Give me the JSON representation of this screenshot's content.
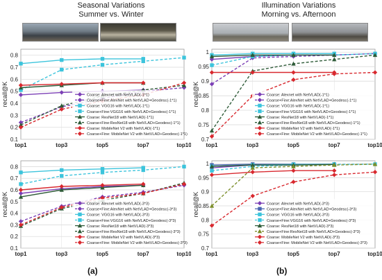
{
  "sections": {
    "left_title_line1": "Seasonal Variations",
    "left_title_line2": "Summer vs. Winter",
    "right_title_line1": "Illumination Variations",
    "right_title_line2": "Morning vs. Afternoon",
    "label_a": "(a)",
    "label_b": "(b)"
  },
  "colors": {
    "purple": "#7b3fb5",
    "blue": "#4a66b0",
    "cyan": "#3cc4dc",
    "darkgreen": "#2e5b38",
    "red": "#d8282e",
    "olive": "#7c8e2a"
  },
  "chart_data": [
    {
      "type": "line",
      "ylabel": "recall@K",
      "categories": [
        "top1",
        "top3",
        "top5",
        "top7",
        "top10"
      ],
      "yticks": [
        "0.1",
        "0.2",
        "0.3",
        "0.4",
        "0.5",
        "0.6",
        "0.7",
        "0.8"
      ],
      "ylim": [
        0.1,
        0.85
      ],
      "grid": true,
      "legend_position": "bottom-right",
      "series": [
        {
          "name": "Coarse:  Alexnet with NetVLAD(-1*1)",
          "color": "#7b3fb5",
          "style": "solid",
          "marker": "diamond",
          "values": [
            0.47,
            0.49,
            0.5,
            0.51,
            null
          ]
        },
        {
          "name": "Coarse+Fine:AlexNet with NetVLAD+Geodesc(-1*1)",
          "color": "#7b3fb5",
          "style": "dashed",
          "marker": "diamond",
          "values": [
            0.24,
            0.37,
            0.44,
            0.5,
            0.53
          ]
        },
        {
          "name": "Coarse:  VGG16 with NetVLAD(-1*1)",
          "color": "#3cc4dc",
          "style": "solid",
          "marker": "square",
          "values": [
            0.73,
            0.76,
            0.77,
            0.77,
            null
          ]
        },
        {
          "name": "Coarse+Fine:VGG16 with NetVLAD+Geodesc(-1*1)",
          "color": "#3cc4dc",
          "style": "dashed",
          "marker": "square",
          "values": [
            0.51,
            0.68,
            0.72,
            0.75,
            0.78
          ]
        },
        {
          "name": "Coarse:  ResNet18 with NetVLAD(-1*1)",
          "color": "#2e5b38",
          "style": "solid",
          "marker": "triangle",
          "values": [
            0.53,
            0.55,
            0.57,
            0.57,
            null
          ]
        },
        {
          "name": "Coarse+Fine:ResNet18 with NetVLAD+Geodesc(-1*1)",
          "color": "#2e5b38",
          "style": "dashed",
          "marker": "triangle",
          "values": [
            0.22,
            0.38,
            0.46,
            0.51,
            0.55
          ]
        },
        {
          "name": "Coarse:  MobileNet V2 with NetVLAD(-1*1)",
          "color": "#d8282e",
          "style": "solid",
          "marker": "diamond",
          "values": [
            0.55,
            0.56,
            0.57,
            0.57,
            null
          ]
        },
        {
          "name": "Coarse+Fine: MobileNet V2 with NetVLAD+Geodesc(-1*1)",
          "color": "#d8282e",
          "style": "dashed",
          "marker": "diamond",
          "values": [
            0.2,
            0.35,
            0.42,
            0.47,
            0.57
          ]
        }
      ]
    },
    {
      "type": "line",
      "ylabel": "recall@K",
      "categories": [
        "top1",
        "top3",
        "top5",
        "top7",
        "top10"
      ],
      "yticks": [
        "0.7",
        "0.75",
        "0.8",
        "0.85",
        "0.9",
        "0.95",
        "1"
      ],
      "ylim": [
        0.7,
        1.01
      ],
      "grid": true,
      "legend_position": "bottom-right",
      "series": [
        {
          "name": "Coarse:  Alexnet with NetVLAD(-1*1)",
          "color": "#7b3fb5",
          "style": "solid",
          "marker": "diamond",
          "values": [
            0.975,
            0.985,
            0.99,
            0.99,
            null
          ]
        },
        {
          "name": "Coarse+Fine:AlexNet with NetVLAD+Geodesc(-1*1)",
          "color": "#7b3fb5",
          "style": "dashed",
          "marker": "diamond",
          "values": [
            0.89,
            0.98,
            0.985,
            0.99,
            0.995
          ]
        },
        {
          "name": "Coarse:  VGG16 with NetVLAD(-1*1)",
          "color": "#3cc4dc",
          "style": "solid",
          "marker": "square",
          "values": [
            0.99,
            0.995,
            0.995,
            0.995,
            null
          ]
        },
        {
          "name": "Coarse+Fine:VGG16 with NetVLAD+Geodesc(-1*1)",
          "color": "#3cc4dc",
          "style": "dashed",
          "marker": "square",
          "values": [
            0.955,
            0.985,
            0.99,
            0.99,
            0.995
          ]
        },
        {
          "name": "Coarse:  ResNet18 with NetVLAD(-1*1)",
          "color": "#2e5b38",
          "style": "solid",
          "marker": "triangle",
          "values": [
            0.985,
            0.99,
            0.99,
            0.99,
            null
          ]
        },
        {
          "name": "Coarse+Fine:ResNet18 with NetVLAD+Geodesc(-1*1)",
          "color": "#2e5b38",
          "style": "dashed",
          "marker": "triangle",
          "values": [
            0.73,
            0.935,
            0.96,
            0.975,
            0.99
          ]
        },
        {
          "name": "Coarse:  MobileNet V2 with NetVLAD(-1*1)",
          "color": "#d8282e",
          "style": "solid",
          "marker": "diamond",
          "values": [
            0.93,
            0.93,
            0.93,
            0.93,
            null
          ]
        },
        {
          "name": "Coarse+Fine: MobileNet V2 with NetVLAD+Geodesc(-1*1)",
          "color": "#d8282e",
          "style": "dashed",
          "marker": "diamond",
          "values": [
            0.71,
            0.85,
            0.905,
            0.925,
            0.93
          ]
        }
      ]
    },
    {
      "type": "line",
      "ylabel": "recall@K",
      "categories": [
        "top1",
        "top3",
        "top5",
        "top7",
        "top10"
      ],
      "yticks": [
        "0.1",
        "0.2",
        "0.3",
        "0.4",
        "0.5",
        "0.6",
        "0.7",
        "0.8"
      ],
      "ylim": [
        0.1,
        0.85
      ],
      "grid": true,
      "legend_position": "bottom-right",
      "series": [
        {
          "name": "Coarse:  Alexnet with NetVLAD(-3*3)",
          "color": "#7b3fb5",
          "style": "solid",
          "marker": "diamond",
          "values": [
            0.57,
            0.61,
            0.63,
            0.64,
            null
          ]
        },
        {
          "name": "Coarse+Fine:AlexNet with NetVLAD+Geodesc(-3*3)",
          "color": "#7b3fb5",
          "style": "dashed",
          "marker": "diamond",
          "values": [
            0.33,
            0.46,
            0.54,
            0.58,
            0.64
          ]
        },
        {
          "name": "Coarse:  VGG16 with NetVLAD(-3*3)",
          "color": "#3cc4dc",
          "style": "solid",
          "marker": "square",
          "values": [
            0.75,
            0.77,
            0.78,
            0.79,
            null
          ]
        },
        {
          "name": "Coarse+Fine:VGG16 with NetVLAD+Geodesc(-3*3)",
          "color": "#3cc4dc",
          "style": "dashed",
          "marker": "square",
          "values": [
            0.65,
            0.72,
            0.75,
            0.77,
            0.8
          ]
        },
        {
          "name": "Coarse:  ResNet18 with NetVLAD(-3*3)",
          "color": "#2e5b38",
          "style": "solid",
          "marker": "triangle",
          "values": [
            0.54,
            0.6,
            0.62,
            0.64,
            null
          ]
        },
        {
          "name": "Coarse+Fine:ResNet18 with NetVLAD+Geodesc(-3*3)",
          "color": "#2e5b38",
          "style": "dashed",
          "marker": "triangle",
          "values": [
            0.29,
            0.44,
            0.51,
            0.57,
            0.66
          ]
        },
        {
          "name": "Coarse: MobileNet V2 with NetVLAD(-3*3)",
          "color": "#d8282e",
          "style": "solid",
          "marker": "diamond",
          "values": [
            0.6,
            0.63,
            0.64,
            0.65,
            null
          ]
        },
        {
          "name": "Coarse+Fine: MobileNet V2 with NetVLAD+Geodesc(-3*3)",
          "color": "#d8282e",
          "style": "dashed",
          "marker": "diamond",
          "values": [
            0.3,
            0.45,
            0.53,
            0.57,
            0.65
          ]
        }
      ]
    },
    {
      "type": "line",
      "ylabel": "recall@K",
      "categories": [
        "top1",
        "top3",
        "top5",
        "top7",
        "top10"
      ],
      "yticks": [
        "0.7",
        "0.75",
        "0.8",
        "0.85",
        "0.9",
        "0.95",
        "1"
      ],
      "ylim": [
        0.7,
        1.01
      ],
      "grid": true,
      "legend_position": "bottom-right",
      "series": [
        {
          "name": "Coarse:  Alexnet with NetVLAD(-3*3)",
          "color": "#7b3fb5",
          "style": "solid",
          "marker": "diamond",
          "values": [
            0.985,
            0.995,
            0.995,
            0.998,
            null
          ]
        },
        {
          "name": "Coarse+Fine:AlexNet with NetVLAD+Geodesc(-3*3)",
          "color": "#4a66b0",
          "style": "solid",
          "marker": "square",
          "values": [
            0.995,
            0.998,
            0.998,
            0.998,
            null
          ]
        },
        {
          "name": "Coarse:  VGG16 with NetVLAD(-3*3)",
          "color": "#3cc4dc",
          "style": "solid",
          "marker": "square",
          "values": [
            0.99,
            0.995,
            0.997,
            0.998,
            null
          ]
        },
        {
          "name": "Coarse+Fine:VGG16 with NetVLAD+Geodesc(-3*3)",
          "color": "#3cc4dc",
          "style": "dashed",
          "marker": "square",
          "values": [
            0.975,
            0.99,
            0.995,
            0.997,
            0.998
          ]
        },
        {
          "name": "Coarse:  ResNet18 with NetVLAD(-3*3)",
          "color": "#2e5b38",
          "style": "solid",
          "marker": "triangle",
          "values": [
            0.99,
            0.995,
            0.995,
            0.997,
            null
          ]
        },
        {
          "name": "Coarse+Fine:ResNet18 with NetVLAD+Geodesc(-3*3)",
          "color": "#7c8e2a",
          "style": "dashed",
          "marker": "triangle",
          "values": [
            0.85,
            0.985,
            0.99,
            0.995,
            0.998
          ]
        },
        {
          "name": "Coarse: MobileNet V2 with NetVLAD(-3*3)",
          "color": "#d8282e",
          "style": "solid",
          "marker": "diamond",
          "values": [
            0.96,
            0.97,
            0.975,
            0.975,
            null
          ]
        },
        {
          "name": "Coarse+Fine: MobileNet V2 with NetVLAD+Geodesc(-3*3)",
          "color": "#d8282e",
          "style": "dashed",
          "marker": "diamond",
          "values": [
            0.78,
            0.885,
            0.935,
            0.96,
            0.97
          ]
        }
      ]
    }
  ]
}
